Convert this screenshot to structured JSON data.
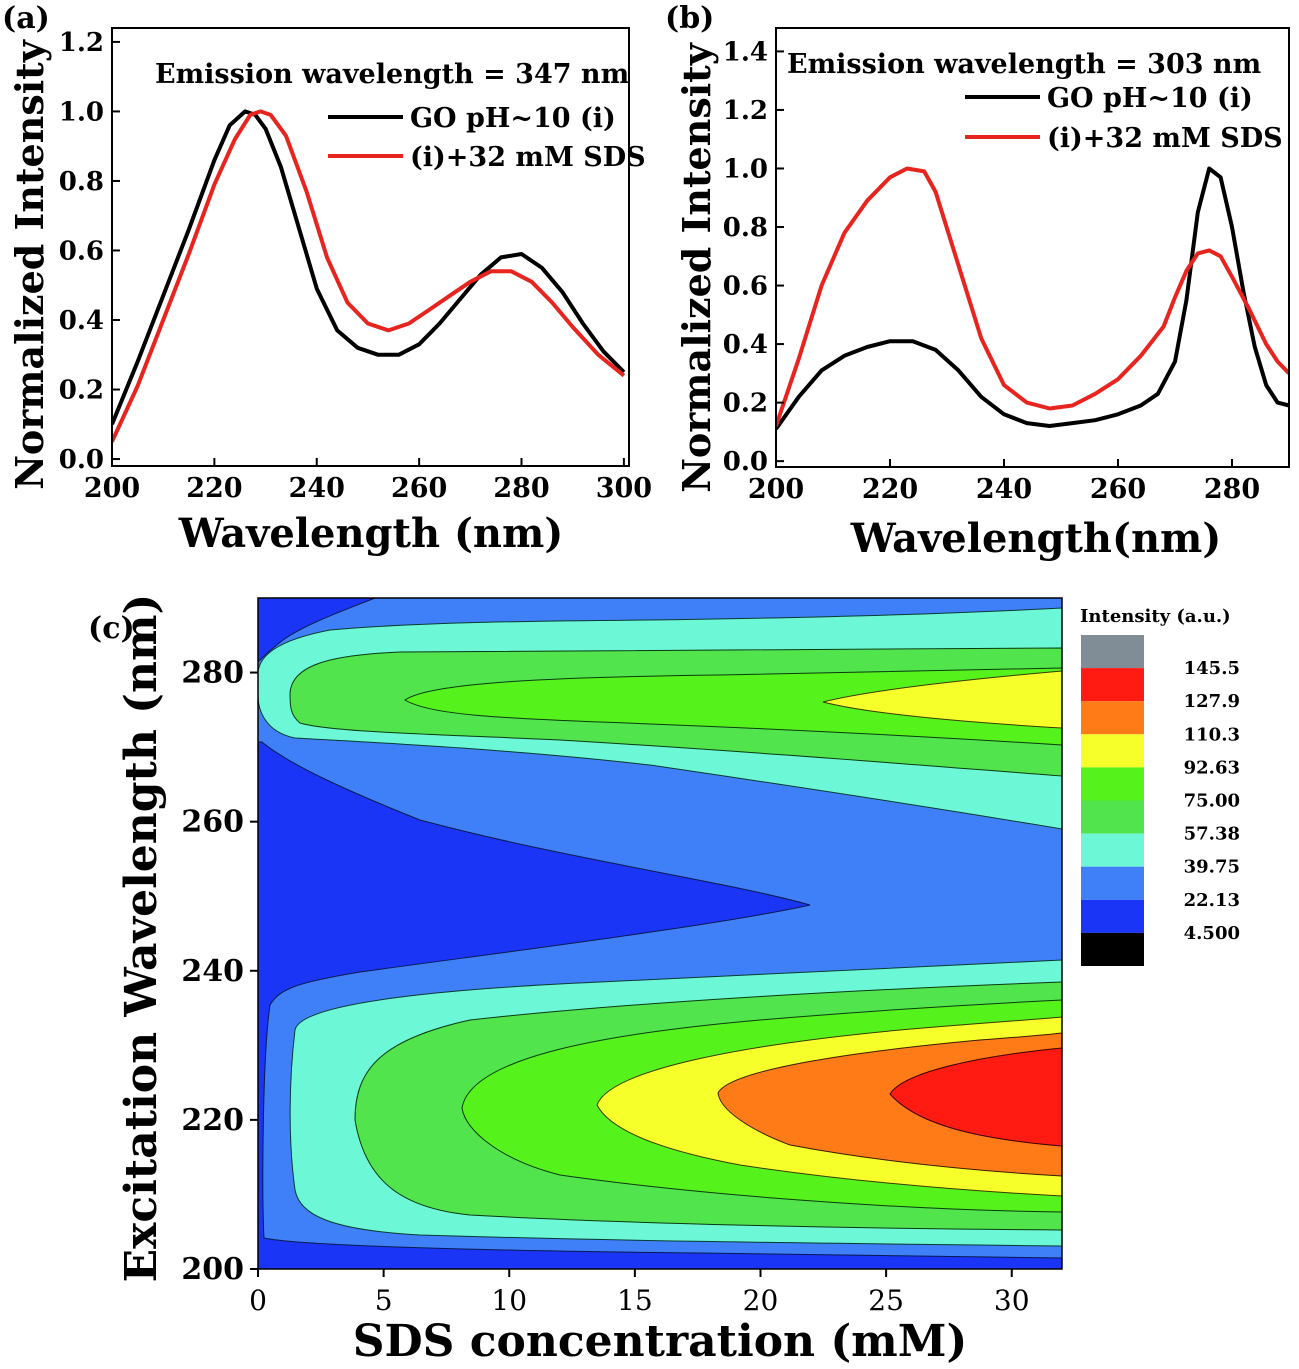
{
  "chart_data": [
    {
      "panel": "(a)",
      "type": "line",
      "annotation": "Emission wavelength = 347 nm",
      "xlabel": "Wavelength (nm)",
      "ylabel": "Normalized Intensity",
      "xlim": [
        200,
        301
      ],
      "ylim": [
        -0.02,
        1.24
      ],
      "xticks": [
        200,
        220,
        240,
        260,
        280,
        300
      ],
      "yticks": [
        "0.0",
        "0.2",
        "0.4",
        "0.6",
        "0.8",
        "1.0",
        "1.2"
      ],
      "legend_position": "top-right",
      "series": [
        {
          "name": "GO pH~10 (i)",
          "color": "#000000",
          "x": [
            200,
            205,
            210,
            215,
            220,
            223,
            226,
            228,
            230,
            233,
            236,
            240,
            244,
            248,
            252,
            256,
            260,
            264,
            268,
            272,
            276,
            280,
            284,
            288,
            292,
            296,
            300
          ],
          "y": [
            0.1,
            0.28,
            0.47,
            0.66,
            0.86,
            0.96,
            1.0,
            0.99,
            0.95,
            0.84,
            0.69,
            0.49,
            0.37,
            0.32,
            0.3,
            0.3,
            0.33,
            0.39,
            0.46,
            0.53,
            0.58,
            0.59,
            0.55,
            0.48,
            0.39,
            0.31,
            0.25
          ]
        },
        {
          "name": "(i)+32 mM SDS",
          "color": "#e8241f",
          "x": [
            200,
            205,
            210,
            215,
            220,
            224,
            227,
            229,
            231,
            234,
            238,
            242,
            246,
            250,
            254,
            258,
            262,
            266,
            270,
            274,
            278,
            282,
            286,
            290,
            295,
            300
          ],
          "y": [
            0.05,
            0.21,
            0.4,
            0.59,
            0.79,
            0.92,
            0.99,
            1.0,
            0.99,
            0.93,
            0.77,
            0.58,
            0.45,
            0.39,
            0.37,
            0.39,
            0.43,
            0.47,
            0.51,
            0.54,
            0.54,
            0.51,
            0.45,
            0.38,
            0.3,
            0.24
          ]
        }
      ]
    },
    {
      "panel": "(b)",
      "type": "line",
      "annotation": "Emission wavelength = 303 nm",
      "xlabel": "Wavelength(nm)",
      "ylabel": "Normalized Intensity",
      "xlim": [
        200,
        290
      ],
      "ylim": [
        -0.02,
        1.48
      ],
      "xticks": [
        200,
        220,
        240,
        260,
        280
      ],
      "yticks": [
        "0.0",
        "0.2",
        "0.4",
        "0.6",
        "0.8",
        "1.0",
        "1.2",
        "1.4"
      ],
      "legend_position": "top-right",
      "series": [
        {
          "name": "GO pH~10 (i)",
          "color": "#000000",
          "x": [
            200,
            204,
            208,
            212,
            216,
            220,
            224,
            228,
            232,
            236,
            240,
            244,
            248,
            252,
            256,
            260,
            264,
            267,
            270,
            272,
            274,
            276,
            278,
            280,
            282,
            284,
            286,
            288,
            290
          ],
          "y": [
            0.11,
            0.22,
            0.31,
            0.36,
            0.39,
            0.41,
            0.41,
            0.38,
            0.31,
            0.22,
            0.16,
            0.13,
            0.12,
            0.13,
            0.14,
            0.16,
            0.19,
            0.23,
            0.34,
            0.55,
            0.85,
            1.0,
            0.97,
            0.8,
            0.58,
            0.39,
            0.26,
            0.2,
            0.19
          ]
        },
        {
          "name": "(i)+32 mM SDS",
          "color": "#e8241f",
          "x": [
            200,
            204,
            208,
            212,
            216,
            220,
            223,
            226,
            228,
            232,
            236,
            240,
            244,
            248,
            252,
            256,
            260,
            264,
            268,
            270,
            272,
            274,
            276,
            278,
            280,
            283,
            286,
            288,
            290
          ],
          "y": [
            0.12,
            0.35,
            0.6,
            0.78,
            0.89,
            0.97,
            1.0,
            0.99,
            0.92,
            0.67,
            0.42,
            0.26,
            0.2,
            0.18,
            0.19,
            0.23,
            0.28,
            0.36,
            0.46,
            0.56,
            0.65,
            0.71,
            0.72,
            0.7,
            0.63,
            0.52,
            0.4,
            0.34,
            0.3
          ]
        }
      ]
    },
    {
      "panel": "(c)",
      "type": "heatmap",
      "subtype": "filled-contour",
      "xlabel": "SDS concentration (mM)",
      "ylabel": "Excitation Wavelength (nm)",
      "xlim": [
        0,
        32
      ],
      "ylim": [
        200,
        290
      ],
      "xticks": [
        0,
        5,
        10,
        15,
        20,
        25,
        30
      ],
      "yticks": [
        200,
        220,
        240,
        260,
        280
      ],
      "colorbar": {
        "title": "Intensity (a.u.)",
        "levels": [
          "145.5",
          "127.9",
          "110.3",
          "92.63",
          "75.00",
          "57.38",
          "39.75",
          "22.13",
          "4.500"
        ],
        "colors": [
          "#808c96",
          "#ff1a12",
          "#ff7b18",
          "#f7ff2a",
          "#55f21c",
          "#51e44c",
          "#6cf7d6",
          "#3f80f8",
          "#1a35f5",
          "#000000"
        ]
      }
    }
  ]
}
